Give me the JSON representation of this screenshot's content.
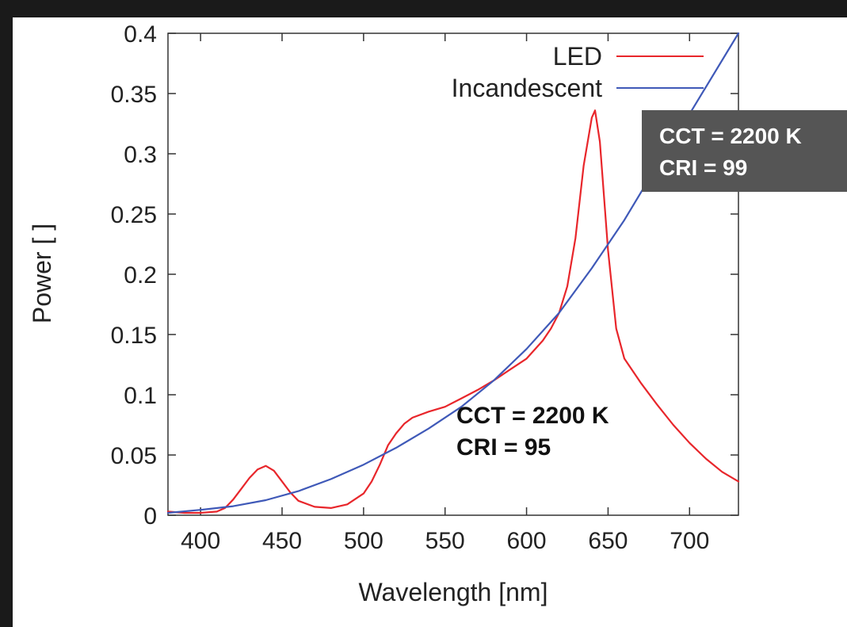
{
  "chart_data": {
    "type": "line",
    "title": "",
    "xlabel": "Wavelength [nm]",
    "ylabel": "Power [ ]",
    "xlim": [
      380,
      730
    ],
    "ylim": [
      0,
      0.4
    ],
    "xticks": [
      400,
      450,
      500,
      550,
      600,
      650,
      700
    ],
    "yticks": [
      0,
      0.05,
      0.1,
      0.15,
      0.2,
      0.25,
      0.3,
      0.35,
      0.4
    ],
    "ytick_labels": [
      "0",
      "0.05",
      "0.1",
      "0.15",
      "0.2",
      "0.25",
      "0.3",
      "0.35",
      "0.4"
    ],
    "grid": false,
    "legend_position": "top-right",
    "series": [
      {
        "name": "LED",
        "color": "#e8262b",
        "x": [
          380,
          390,
          400,
          410,
          415,
          420,
          425,
          430,
          435,
          440,
          445,
          450,
          455,
          460,
          470,
          480,
          490,
          500,
          505,
          510,
          515,
          520,
          525,
          530,
          540,
          550,
          560,
          570,
          580,
          590,
          600,
          610,
          615,
          620,
          625,
          630,
          635,
          640,
          642,
          645,
          650,
          655,
          660,
          670,
          680,
          690,
          700,
          710,
          720,
          730
        ],
        "y": [
          0.003,
          0.002,
          0.002,
          0.003,
          0.006,
          0.013,
          0.022,
          0.031,
          0.038,
          0.041,
          0.037,
          0.028,
          0.019,
          0.012,
          0.007,
          0.006,
          0.009,
          0.018,
          0.028,
          0.042,
          0.058,
          0.068,
          0.076,
          0.081,
          0.086,
          0.09,
          0.097,
          0.104,
          0.112,
          0.121,
          0.13,
          0.145,
          0.155,
          0.168,
          0.19,
          0.23,
          0.29,
          0.33,
          0.336,
          0.31,
          0.22,
          0.155,
          0.13,
          0.11,
          0.092,
          0.075,
          0.06,
          0.047,
          0.036,
          0.028
        ]
      },
      {
        "name": "Incandescent",
        "color": "#3f59b8",
        "x": [
          380,
          400,
          420,
          440,
          460,
          480,
          500,
          520,
          540,
          560,
          580,
          600,
          620,
          640,
          660,
          680,
          700,
          730
        ],
        "y": [
          0.002,
          0.0045,
          0.0075,
          0.0125,
          0.02,
          0.03,
          0.042,
          0.056,
          0.072,
          0.09,
          0.112,
          0.138,
          0.168,
          0.205,
          0.245,
          0.29,
          0.333,
          0.4
        ]
      }
    ],
    "annotations": [
      {
        "id": "led",
        "text_line1": "CCT = 2200 K",
        "text_line2": "CRI = 95"
      },
      {
        "id": "incandescent",
        "text_line1": "CCT = 2200 K",
        "text_line2": "CRI = 99",
        "box_color": "#555555"
      }
    ]
  }
}
